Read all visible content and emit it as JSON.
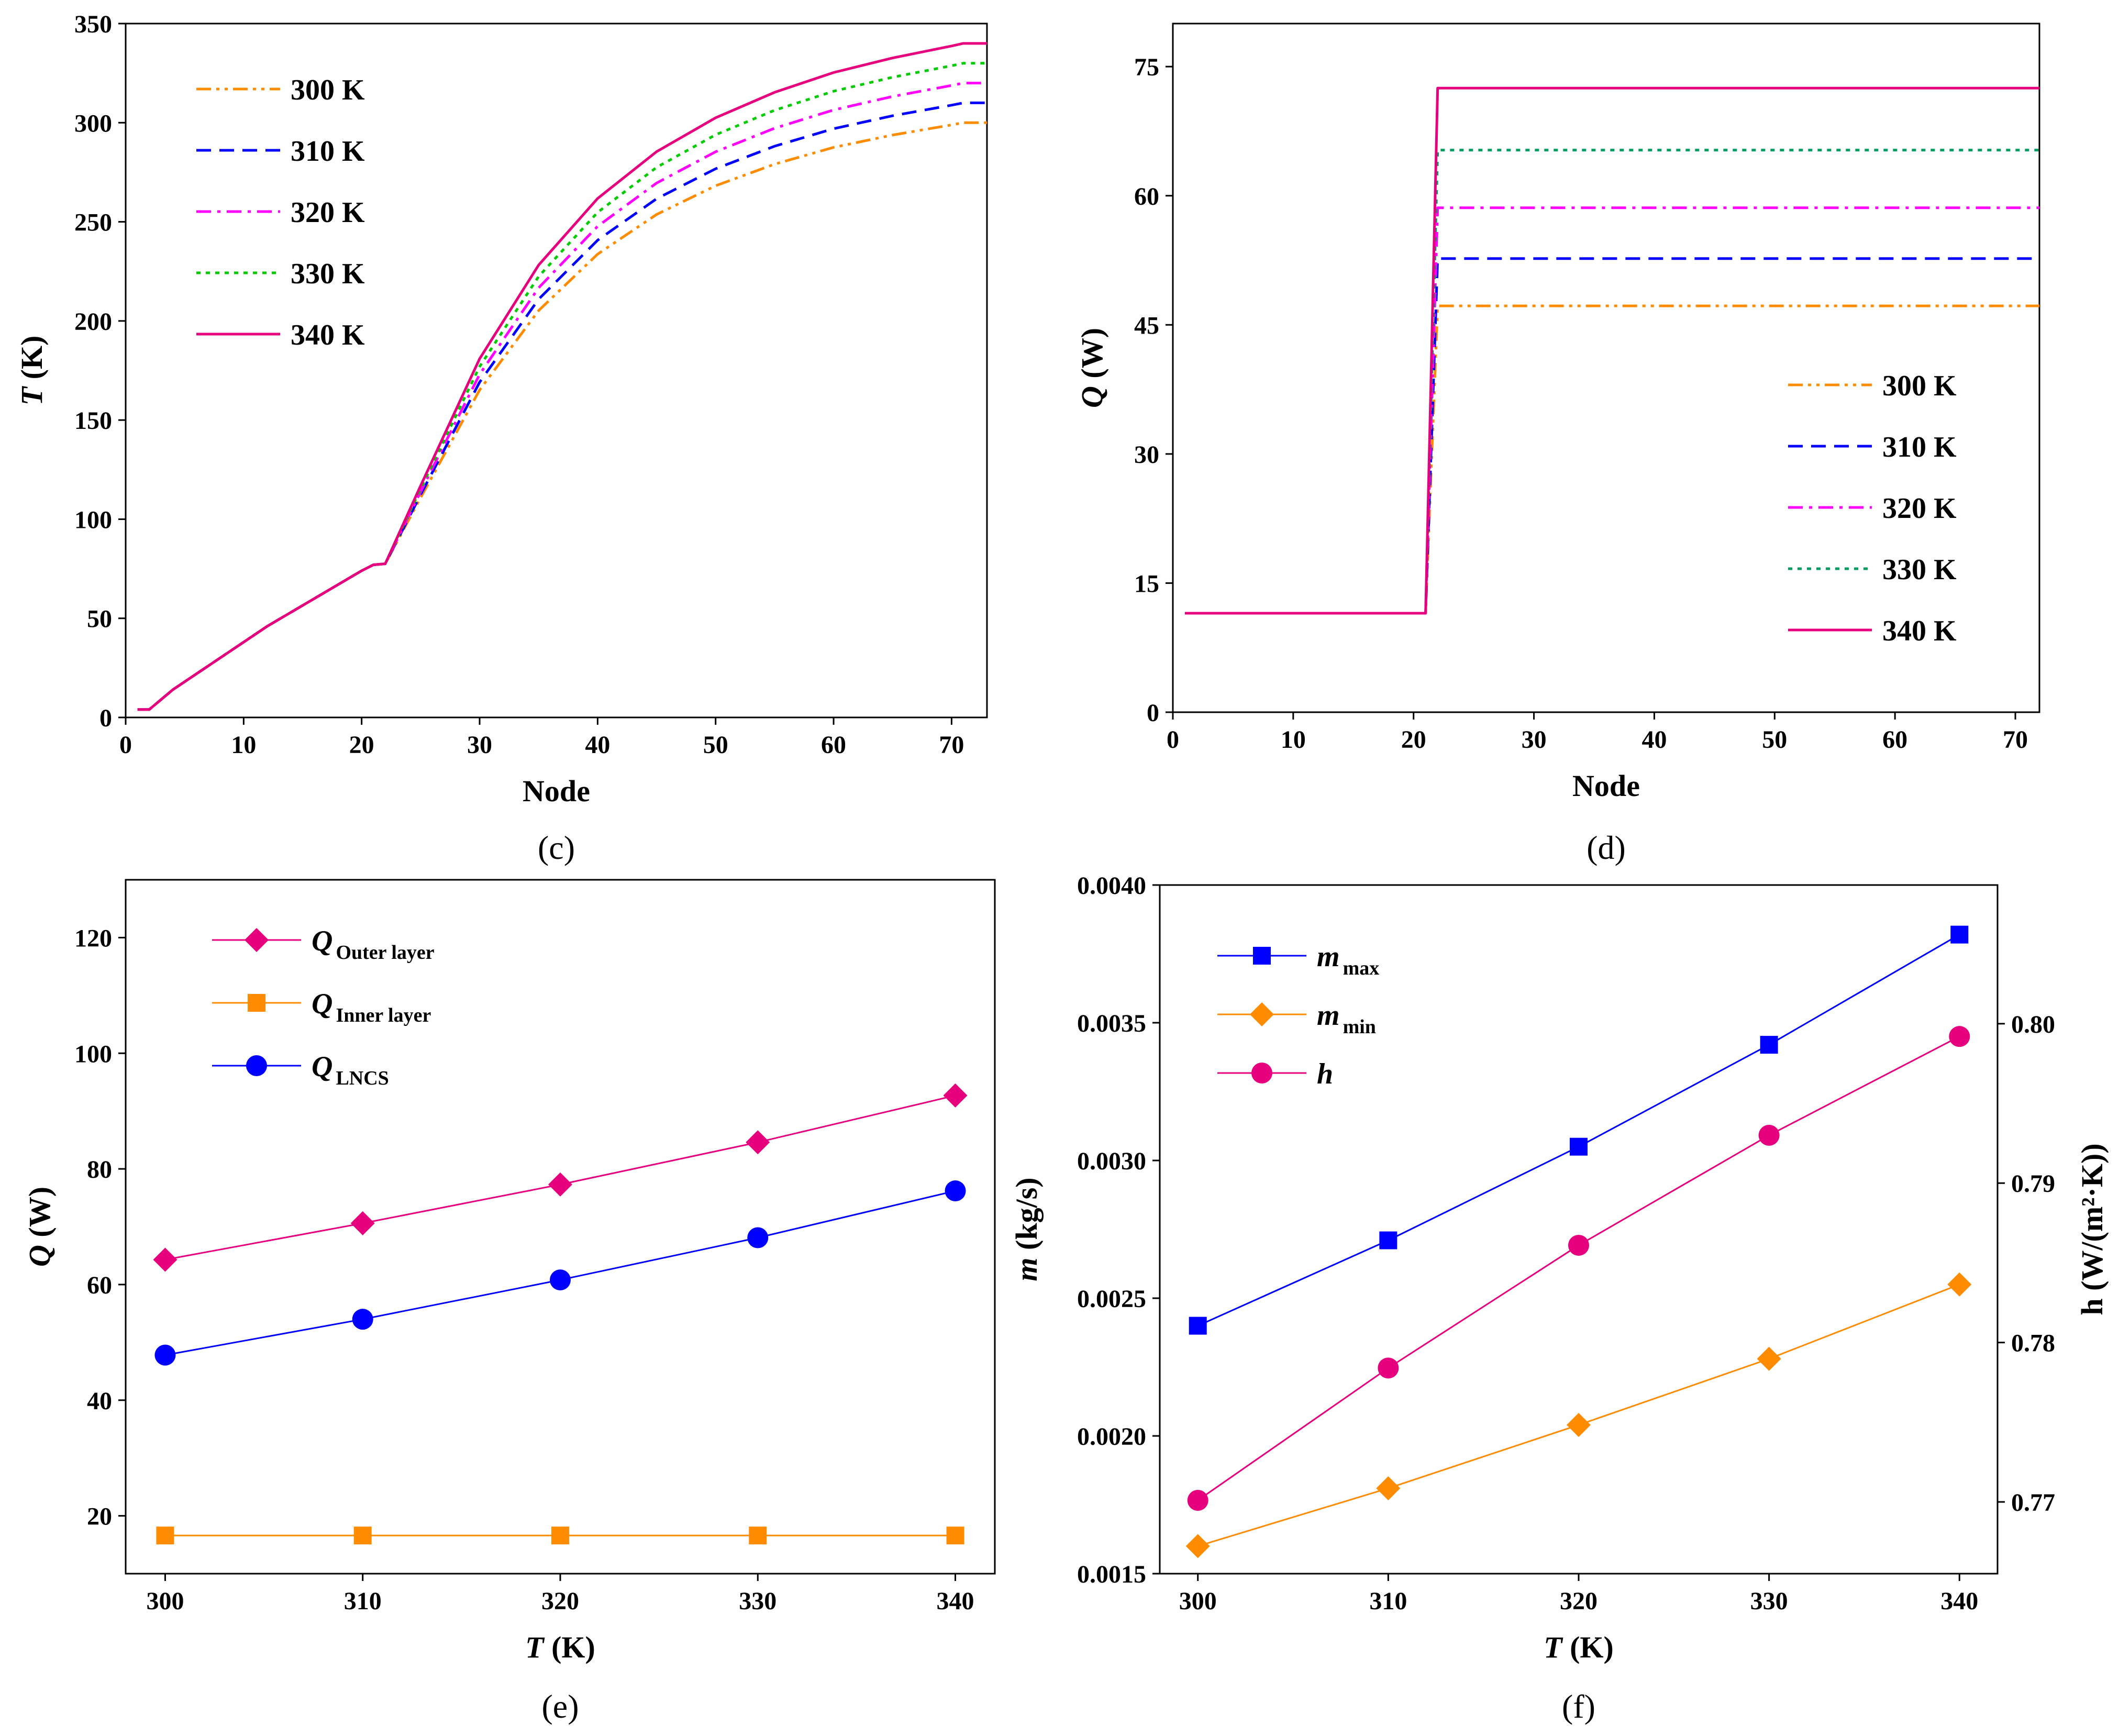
{
  "figure": {
    "panels": [
      "(c)",
      "(d)",
      "(e)",
      "(f)"
    ]
  },
  "chart_data": [
    {
      "id": "c",
      "type": "line",
      "panel_label": "(c)",
      "xlabel": "Node",
      "ylabel_symbol": "T",
      "ylabel_unit": " (K)",
      "xlim": [
        0,
        73
      ],
      "ylim": [
        0,
        350
      ],
      "xticks": [
        0,
        10,
        20,
        30,
        40,
        50,
        60,
        70
      ],
      "yticks": [
        0,
        50,
        100,
        150,
        200,
        250,
        300,
        350
      ],
      "legend_position": "top-left",
      "series": [
        {
          "name": "300 K",
          "color": "#FF8C00",
          "dash": "dashdotdot",
          "end_value": 300
        },
        {
          "name": "310 K",
          "color": "#0000FF",
          "dash": "dash",
          "end_value": 310
        },
        {
          "name": "320 K",
          "color": "#FF00FF",
          "dash": "dashdot",
          "end_value": 320
        },
        {
          "name": "330 K",
          "color": "#00CC00",
          "dash": "dot",
          "end_value": 330
        },
        {
          "name": "340 K",
          "color": "#E6007E",
          "dash": "solid",
          "end_value": 340
        }
      ],
      "shared_segment": {
        "x": [
          1,
          2,
          3,
          4,
          6,
          8,
          10,
          12,
          14,
          16,
          18,
          20,
          21,
          22
        ],
        "y": [
          4,
          4,
          9,
          14,
          22,
          30,
          38,
          46,
          53,
          60,
          67,
          74,
          77,
          77.5
        ]
      },
      "curve_shape": {
        "x": [
          22,
          25,
          30,
          35,
          40,
          45,
          50,
          55,
          60,
          65,
          70,
          71,
          72,
          73
        ],
        "fraction": [
          0,
          0.15,
          0.394,
          0.574,
          0.702,
          0.792,
          0.857,
          0.906,
          0.944,
          0.972,
          0.995,
          1.0,
          1.0,
          1.0
        ]
      }
    },
    {
      "id": "d",
      "type": "line",
      "panel_label": "(d)",
      "xlabel": "Node",
      "ylabel_symbol": "Q",
      "ylabel_unit": " (W)",
      "xlim": [
        0,
        72
      ],
      "ylim": [
        0,
        80
      ],
      "xticks": [
        0,
        10,
        20,
        30,
        40,
        50,
        60,
        70
      ],
      "yticks": [
        0,
        15,
        30,
        45,
        60,
        75
      ],
      "legend_position": "bottom-right",
      "step_from_x": 21,
      "step_to_x": 22,
      "low_value": 11.5,
      "series": [
        {
          "name": "300 K",
          "color": "#FF8C00",
          "dash": "dashdotdot",
          "high_value": 47.2
        },
        {
          "name": "310 K",
          "color": "#0000FF",
          "dash": "dash",
          "high_value": 52.7
        },
        {
          "name": "320 K",
          "color": "#FF00FF",
          "dash": "dashdot",
          "high_value": 58.6
        },
        {
          "name": "330 K",
          "color": "#009E60",
          "dash": "dot",
          "high_value": 65.3
        },
        {
          "name": "340 K",
          "color": "#E6007E",
          "dash": "solid",
          "high_value": 72.5
        }
      ]
    },
    {
      "id": "e",
      "type": "line",
      "panel_label": "(e)",
      "xlabel_symbol": "T",
      "xlabel_unit": " (K)",
      "ylabel_symbol": "Q",
      "ylabel_unit": " (W)",
      "xlim": [
        298,
        342
      ],
      "ylim": [
        10,
        130
      ],
      "xticks": [
        300,
        310,
        320,
        330,
        340
      ],
      "yticks": [
        20,
        40,
        60,
        80,
        100,
        120
      ],
      "legend_position": "top-left",
      "x": [
        300,
        310,
        320,
        330,
        340
      ],
      "series": [
        {
          "name": "Q",
          "subscript": "Outer layer",
          "marker": "diamond",
          "color": "#E6007E",
          "values": [
            64.3,
            70.6,
            77.3,
            84.6,
            92.7
          ]
        },
        {
          "name": "Q",
          "subscript": "Inner layer",
          "marker": "square",
          "color": "#FF8C00",
          "values": [
            16.6,
            16.6,
            16.6,
            16.6,
            16.6
          ]
        },
        {
          "name": "Q",
          "subscript": "LNCS",
          "marker": "circle",
          "color": "#0000FF",
          "values": [
            47.8,
            54.0,
            60.8,
            68.1,
            76.2
          ]
        }
      ]
    },
    {
      "id": "f",
      "type": "line",
      "panel_label": "(f)",
      "xlabel_symbol": "T",
      "xlabel_unit": " (K)",
      "ylabel_symbol": "m",
      "ylabel_unit": " (kg/s)",
      "ylabel2": "h (W/(m²·K))",
      "xlim": [
        298,
        342
      ],
      "ylim": [
        0.0015,
        0.004
      ],
      "ylim_right": [
        0.7655,
        0.8087
      ],
      "xticks": [
        300,
        310,
        320,
        330,
        340
      ],
      "yticks": [
        "0.0015",
        "0.0020",
        "0.0025",
        "0.0030",
        "0.0035",
        "0.0040"
      ],
      "yticks_right": [
        "0.77",
        "0.78",
        "0.79",
        "0.80"
      ],
      "legend_position": "top-left",
      "x": [
        300,
        310,
        320,
        330,
        340
      ],
      "series": [
        {
          "name": "m",
          "subscript": "max",
          "marker": "square",
          "color": "#0000FF",
          "axis": "left",
          "values": [
            0.0024,
            0.00271,
            0.00305,
            0.00342,
            0.00382
          ]
        },
        {
          "name": "m",
          "subscript": "min",
          "marker": "diamond",
          "color": "#FF8C00",
          "axis": "left",
          "values": [
            0.0016,
            0.00181,
            0.00204,
            0.00228,
            0.00255
          ]
        },
        {
          "name": "h",
          "subscript": "",
          "marker": "circle",
          "color": "#E6007E",
          "axis": "right",
          "values": [
            0.7701,
            0.7784,
            0.7861,
            0.793,
            0.7992
          ]
        }
      ]
    }
  ]
}
